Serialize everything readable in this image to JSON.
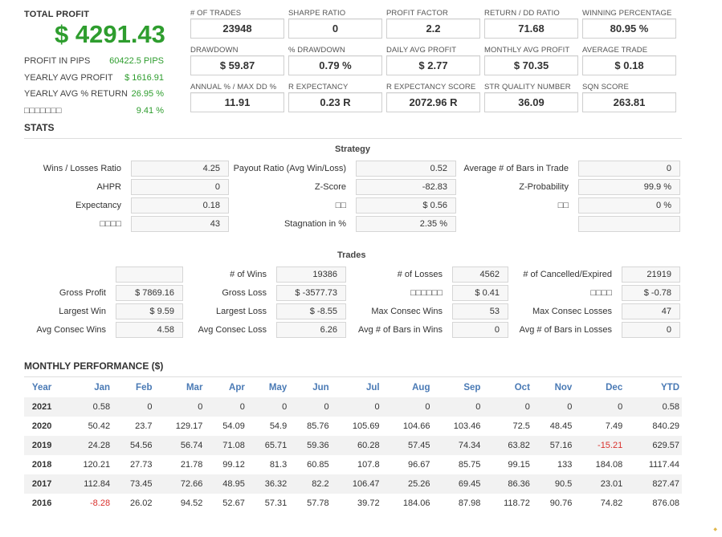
{
  "total_profit": {
    "label": "TOTAL PROFIT",
    "value": "$ 4291.43"
  },
  "side_stats": [
    {
      "key": "PROFIT IN PIPS",
      "value": "60422.5 PIPS"
    },
    {
      "key": "YEARLY AVG PROFIT",
      "value": "$ 1616.91"
    },
    {
      "key": "YEARLY AVG % RETURN",
      "value": "26.95 %"
    },
    {
      "key": "□□□□□□□",
      "value": "9.41 %"
    }
  ],
  "metrics": [
    {
      "label": "# OF TRADES",
      "value": "23948"
    },
    {
      "label": "SHARPE RATIO",
      "value": "0"
    },
    {
      "label": "PROFIT FACTOR",
      "value": "2.2"
    },
    {
      "label": "RETURN / DD RATIO",
      "value": "71.68"
    },
    {
      "label": "WINNING PERCENTAGE",
      "value": "80.95 %"
    },
    {
      "label": "DRAWDOWN",
      "value": "$ 59.87"
    },
    {
      "label": "% DRAWDOWN",
      "value": "0.79 %"
    },
    {
      "label": "DAILY AVG PROFIT",
      "value": "$ 2.77"
    },
    {
      "label": "MONTHLY AVG PROFIT",
      "value": "$ 70.35"
    },
    {
      "label": "AVERAGE TRADE",
      "value": "$ 0.18"
    },
    {
      "label": "ANNUAL % / MAX DD %",
      "value": "11.91"
    },
    {
      "label": "R EXPECTANCY",
      "value": "0.23 R"
    },
    {
      "label": "R EXPECTANCY SCORE",
      "value": "2072.96 R"
    },
    {
      "label": "STR QUALITY NUMBER",
      "value": "36.09"
    },
    {
      "label": "SQN SCORE",
      "value": "263.81"
    }
  ],
  "stats": {
    "title": "STATS",
    "strategy_title": "Strategy",
    "strategy": [
      {
        "label": "Wins / Losses Ratio",
        "value": "4.25"
      },
      {
        "label": "Payout Ratio (Avg Win/Loss)",
        "value": "0.52"
      },
      {
        "label": "Average # of Bars in Trade",
        "value": "0"
      },
      {
        "label": "AHPR",
        "value": "0"
      },
      {
        "label": "Z-Score",
        "value": "-82.83"
      },
      {
        "label": "Z-Probability",
        "value": "99.9 %"
      },
      {
        "label": "Expectancy",
        "value": "0.18"
      },
      {
        "label": "□□",
        "value": "$ 0.56"
      },
      {
        "label": "□□",
        "value": "0 %"
      },
      {
        "label": "□□□□",
        "value": "43"
      },
      {
        "label": "Stagnation in %",
        "value": "2.35 %"
      },
      {
        "label": "",
        "value": ""
      }
    ],
    "trades_title": "Trades",
    "trades": [
      {
        "label": "",
        "value": ""
      },
      {
        "label": "# of Wins",
        "value": "19386"
      },
      {
        "label": "# of Losses",
        "value": "4562"
      },
      {
        "label": "# of Cancelled/Expired",
        "value": "21919"
      },
      {
        "label": "Gross Profit",
        "value": "$ 7869.16"
      },
      {
        "label": "Gross Loss",
        "value": "$ -3577.73"
      },
      {
        "label": "□□□□□□",
        "value": "$ 0.41"
      },
      {
        "label": "□□□□",
        "value": "$ -0.78"
      },
      {
        "label": "Largest Win",
        "value": "$ 9.59"
      },
      {
        "label": "Largest Loss",
        "value": "$ -8.55"
      },
      {
        "label": "Max Consec Wins",
        "value": "53"
      },
      {
        "label": "Max Consec Losses",
        "value": "47"
      },
      {
        "label": "Avg Consec Wins",
        "value": "4.58"
      },
      {
        "label": "Avg Consec Loss",
        "value": "6.26"
      },
      {
        "label": "Avg # of Bars in Wins",
        "value": "0"
      },
      {
        "label": "Avg # of Bars in Losses",
        "value": "0"
      }
    ]
  },
  "monthly": {
    "title": "MONTHLY PERFORMANCE ($)",
    "headers": [
      "Year",
      "Jan",
      "Feb",
      "Mar",
      "Apr",
      "May",
      "Jun",
      "Jul",
      "Aug",
      "Sep",
      "Oct",
      "Nov",
      "Dec",
      "YTD"
    ],
    "rows": [
      [
        "2021",
        "0.58",
        "0",
        "0",
        "0",
        "0",
        "0",
        "0",
        "0",
        "0",
        "0",
        "0",
        "0",
        "0.58"
      ],
      [
        "2020",
        "50.42",
        "23.7",
        "129.17",
        "54.09",
        "54.9",
        "85.76",
        "105.69",
        "104.66",
        "103.46",
        "72.5",
        "48.45",
        "7.49",
        "840.29"
      ],
      [
        "2019",
        "24.28",
        "54.56",
        "56.74",
        "71.08",
        "65.71",
        "59.36",
        "60.28",
        "57.45",
        "74.34",
        "63.82",
        "57.16",
        "-15.21",
        "629.57"
      ],
      [
        "2018",
        "120.21",
        "27.73",
        "21.78",
        "99.12",
        "81.3",
        "60.85",
        "107.8",
        "96.67",
        "85.75",
        "99.15",
        "133",
        "184.08",
        "1117.44"
      ],
      [
        "2017",
        "112.84",
        "73.45",
        "72.66",
        "48.95",
        "36.32",
        "82.2",
        "106.47",
        "25.26",
        "69.45",
        "86.36",
        "90.5",
        "23.01",
        "827.47"
      ],
      [
        "2016",
        "-8.28",
        "26.02",
        "94.52",
        "52.67",
        "57.31",
        "57.78",
        "39.72",
        "184.06",
        "87.98",
        "118.72",
        "90.76",
        "74.82",
        "876.08"
      ]
    ],
    "negative_color": "#d9302c",
    "header_color": "#4a7ab5"
  },
  "colors": {
    "profit_green": "#2e9d2e"
  }
}
